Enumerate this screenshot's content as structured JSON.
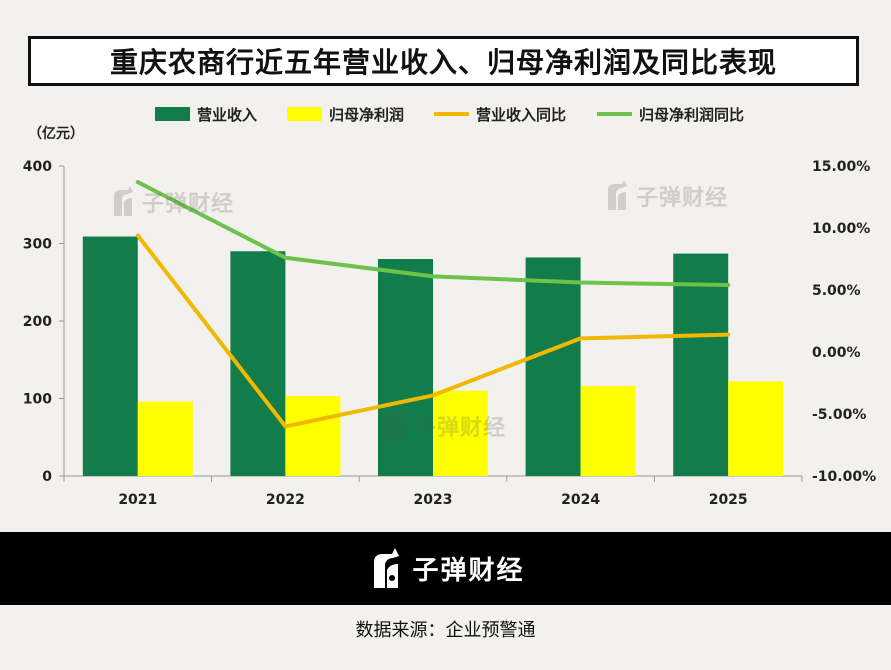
{
  "title": "重庆农商行近五年营业收入、归母净利润及同比表现",
  "chart_data": {
    "type": "bar+line",
    "categories": [
      "2021",
      "2022",
      "2023",
      "2024",
      "2025"
    ],
    "bar_series": [
      {
        "name": "营业收入",
        "values": [
          309,
          290,
          280,
          282,
          287
        ],
        "color": "#127d4b"
      },
      {
        "name": "归母净利润",
        "values": [
          96,
          103,
          110,
          116,
          122
        ],
        "color": "#ffff00"
      }
    ],
    "line_series": [
      {
        "name": "营业收入同比",
        "values": [
          9.4,
          -6.0,
          -3.5,
          1.1,
          1.4
        ],
        "color": "#f0b800"
      },
      {
        "name": "归母净利润同比",
        "values": [
          13.7,
          7.6,
          6.1,
          5.6,
          5.4
        ],
        "color": "#6cc24a"
      }
    ],
    "y_left": {
      "unit_label": "（亿元）",
      "min": 0,
      "max": 400,
      "ticks": [
        "0",
        "100",
        "200",
        "300",
        "400"
      ]
    },
    "y_right": {
      "min": -10,
      "max": 15,
      "ticks": [
        "-10.00%",
        "-5.00%",
        "0.00%",
        "5.00%",
        "10.00%",
        "15.00%"
      ]
    },
    "legend_position": "top",
    "grid": false
  },
  "watermark": {
    "text": "子弹财经"
  },
  "footer": {
    "brand": "子弹财经",
    "source": "数据来源：企业预警通"
  }
}
